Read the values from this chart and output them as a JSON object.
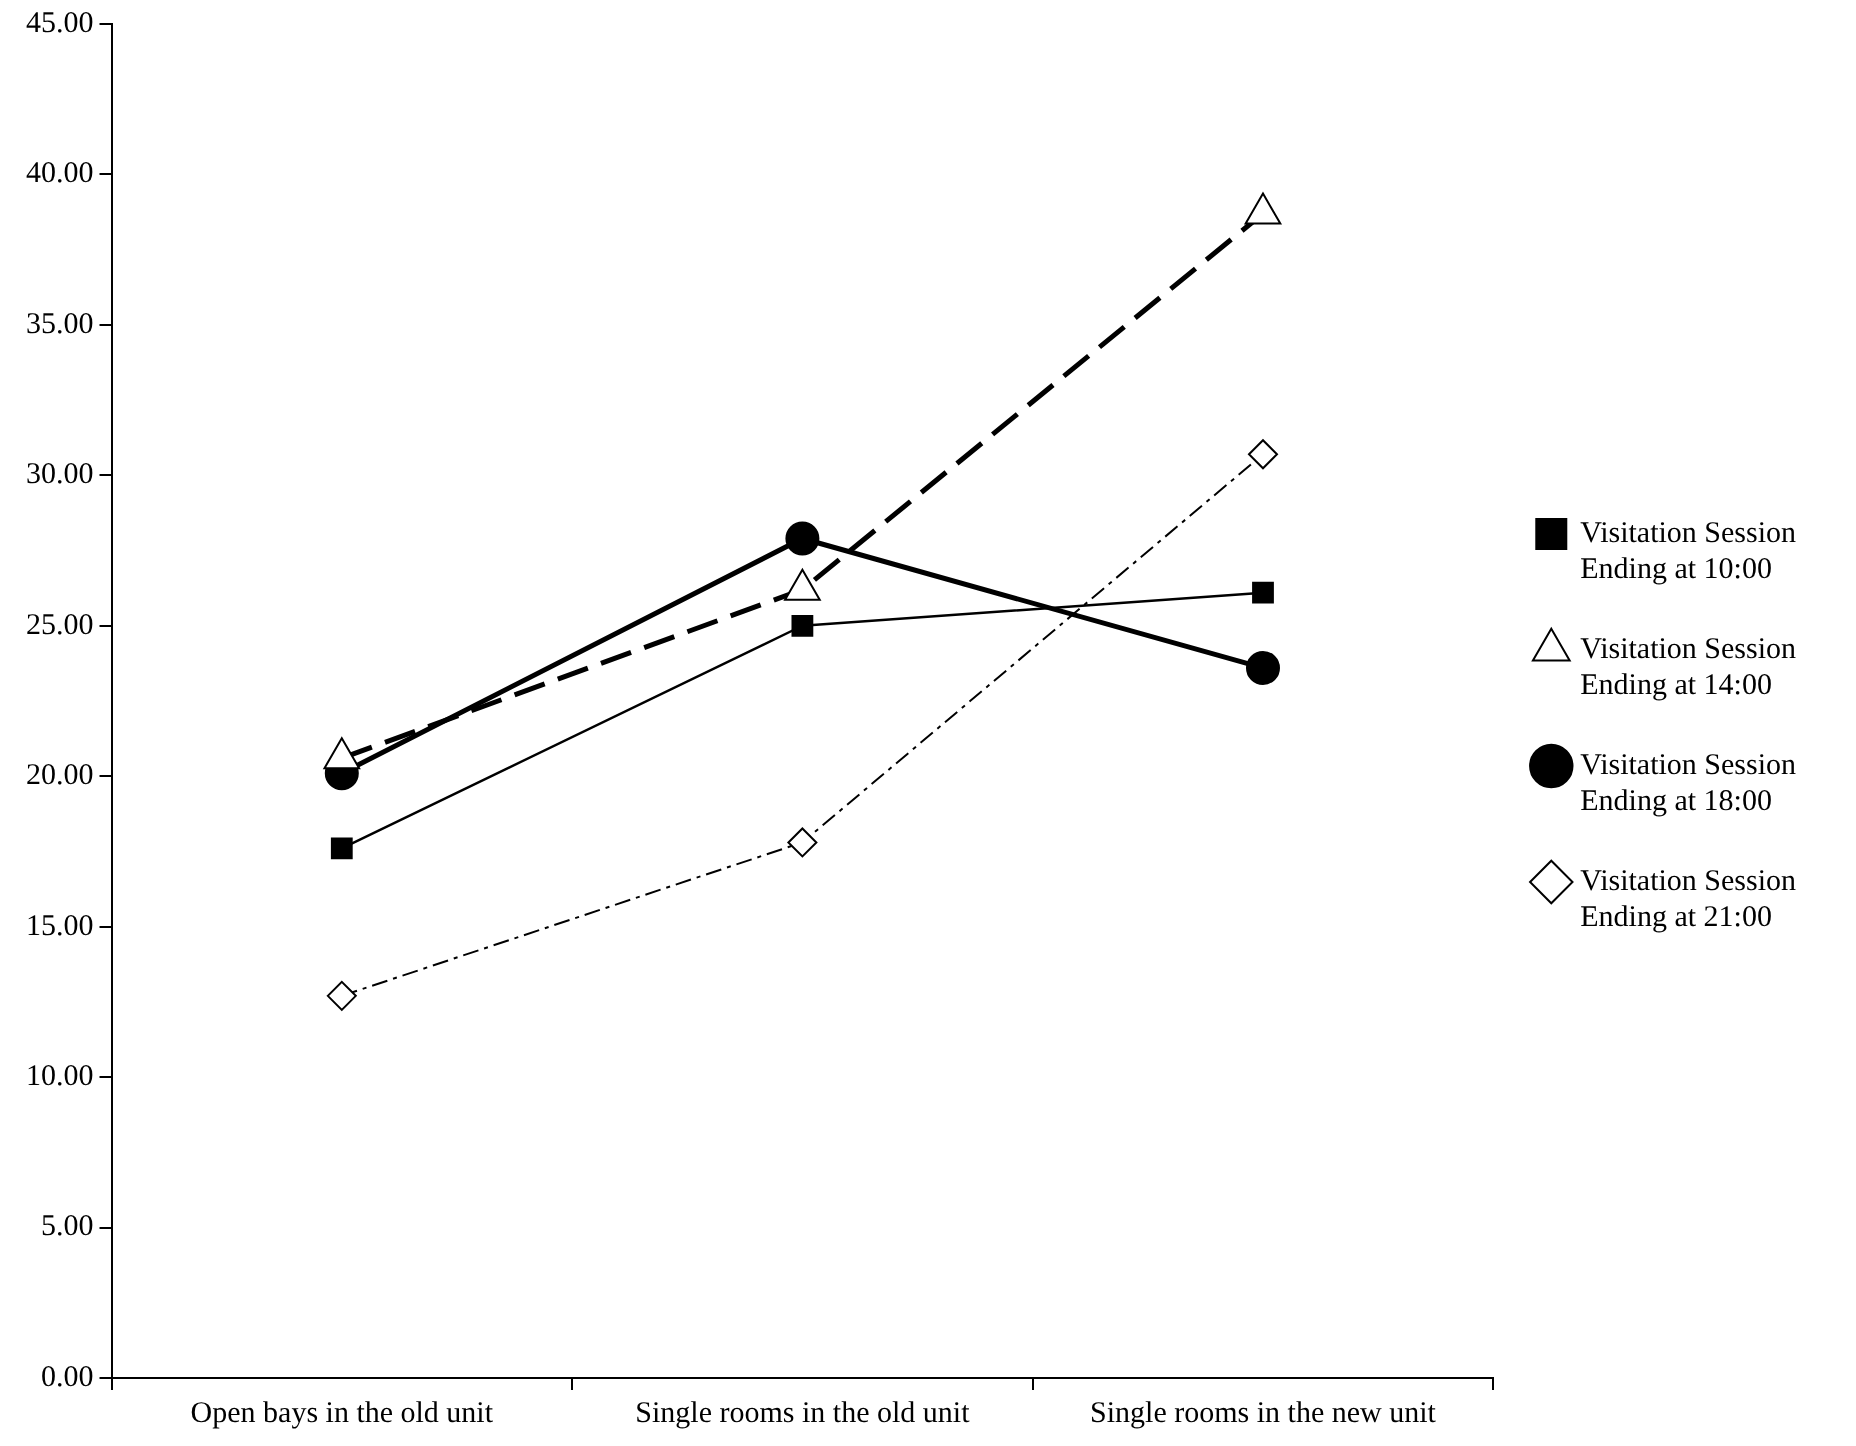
{
  "chart_data": {
    "type": "line",
    "categories": [
      "Open bays in the old unit",
      "Single rooms in the old unit",
      "Single rooms in the new unit"
    ],
    "series": [
      {
        "name": "Visitation Session Ending at 10:00",
        "color": "#000000",
        "values": [
          17.6,
          25.0,
          26.1
        ],
        "marker": "square",
        "line_style": "solid"
      },
      {
        "name": "Visitation Session Ending at 14:00",
        "color": "#000000",
        "values": [
          20.6,
          26.2,
          38.7
        ],
        "marker": "triangle",
        "line_style": "dashed"
      },
      {
        "name": "Visitation Session Ending at 18:00",
        "color": "#000000",
        "values": [
          20.1,
          27.9,
          23.6
        ],
        "marker": "circle",
        "line_style": "solid"
      },
      {
        "name": "Visitation Session Ending at 21:00",
        "color": "#000000",
        "values": [
          12.7,
          17.8,
          30.7
        ],
        "marker": "diamond",
        "line_style": "dotted"
      }
    ],
    "ylim": [
      0,
      45
    ],
    "yticks": [
      {
        "value": 0,
        "label": "0.00"
      },
      {
        "value": 5,
        "label": "5.00"
      },
      {
        "value": 10,
        "label": "10.00"
      },
      {
        "value": 15,
        "label": "15.00"
      },
      {
        "value": 20,
        "label": "20.00"
      },
      {
        "value": 25,
        "label": "25.00"
      },
      {
        "value": 30,
        "label": "30.00"
      },
      {
        "value": 35,
        "label": "35.00"
      },
      {
        "value": 40,
        "label": "40.00"
      },
      {
        "value": 45,
        "label": "45.00"
      }
    ],
    "grid": false,
    "legend": "right"
  }
}
